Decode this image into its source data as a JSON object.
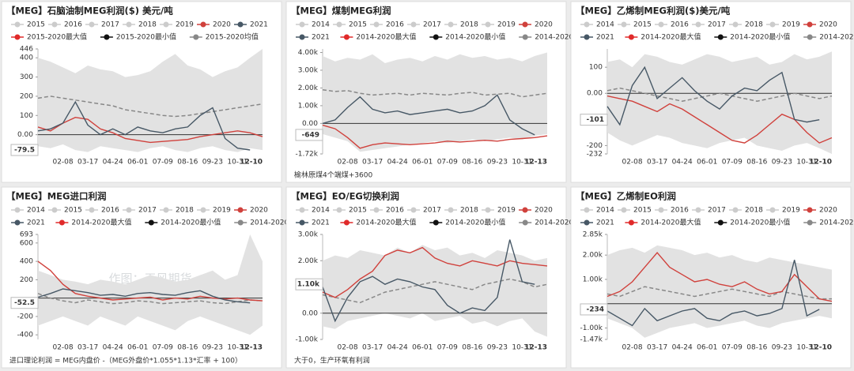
{
  "watermark": "作图：天风期货",
  "chart_data": [
    {
      "type": "line",
      "title": "【MEG】石脑油制MEG利润($) 美元/吨",
      "inactive_legend": [
        "2015",
        "2016",
        "2017",
        "2018",
        "2019"
      ],
      "inactive_color": "#cccccc",
      "categories": [
        null,
        null,
        "02-08",
        null,
        "03-17",
        null,
        "04-24",
        null,
        "06-01",
        null,
        "07-09",
        null,
        "08-16",
        null,
        "09-23",
        null,
        "10-31",
        null,
        "12-10"
      ],
      "ylim": [
        -100,
        446
      ],
      "yticks": [
        446,
        400,
        300,
        200,
        100,
        {
          "value": 0,
          "label": "0.00"
        },
        -100
      ],
      "current": -79.5,
      "zero_line": true,
      "series": [
        {
          "name": "2020",
          "color": "#d0413c",
          "values": [
            40,
            20,
            60,
            90,
            80,
            30,
            10,
            -20,
            -30,
            -40,
            -35,
            -30,
            -25,
            -10,
            0,
            10,
            20,
            10,
            -10
          ]
        },
        {
          "name": "2021",
          "color": "#475866",
          "values": [
            20,
            30,
            60,
            170,
            50,
            0,
            30,
            0,
            40,
            20,
            10,
            30,
            40,
            100,
            140,
            -20,
            -70,
            -79.5,
            null
          ]
        },
        {
          "name": "2015-2020最大值",
          "color": "#e02a2a",
          "band": "upper",
          "values": [
            400,
            380,
            350,
            320,
            360,
            340,
            330,
            300,
            310,
            330,
            380,
            420,
            360,
            340,
            300,
            330,
            350,
            400,
            446
          ]
        },
        {
          "name": "2015-2020最小值",
          "color": "#111111",
          "band": "lower",
          "values": [
            -60,
            -70,
            -50,
            -80,
            -90,
            -60,
            -70,
            -80,
            -90,
            -70,
            -60,
            -80,
            -90,
            -70,
            -60,
            -80,
            -90,
            -70,
            -80
          ]
        },
        {
          "name": "2015-2020均值",
          "color": "#888888",
          "dashed": true,
          "values": [
            190,
            200,
            190,
            180,
            170,
            160,
            150,
            130,
            120,
            110,
            100,
            95,
            100,
            110,
            120,
            130,
            140,
            150,
            160
          ]
        }
      ]
    },
    {
      "type": "line",
      "title": "【MEG】煤制MEG利润",
      "inactive_legend": [
        "2014",
        "2015",
        "2016",
        "2017",
        "2018",
        "2019"
      ],
      "inactive_color": "#cccccc",
      "categories": [
        null,
        null,
        "02-08",
        null,
        "03-17",
        null,
        "04-24",
        null,
        "06-01",
        null,
        "07-09",
        null,
        "08-16",
        null,
        "09-23",
        null,
        "10-31",
        null,
        "12-13"
      ],
      "ylim": [
        -1720,
        4200
      ],
      "yticks": [
        {
          "value": 4000,
          "label": "4.00k"
        },
        {
          "value": 3000,
          "label": "3.00k"
        },
        {
          "value": 2000,
          "label": "2.00k"
        },
        {
          "value": 1000,
          "label": "1.00k"
        },
        {
          "value": 0,
          "label": "0.00"
        },
        {
          "value": -1720,
          "label": "-1.72k"
        }
      ],
      "current": -649,
      "zero_line": true,
      "footnote": "榆林原煤4个端煤+3600",
      "series": [
        {
          "name": "2020",
          "color": "#d0413c",
          "values": [
            -100,
            -300,
            -800,
            -1400,
            -1200,
            -1100,
            -1150,
            -1200,
            -1150,
            -1100,
            -1000,
            -1050,
            -1000,
            -950,
            -1000,
            -900,
            -850,
            -800,
            -700
          ]
        },
        {
          "name": "2021",
          "color": "#475866",
          "values": [
            0,
            200,
            900,
            1500,
            800,
            600,
            700,
            500,
            600,
            700,
            800,
            600,
            700,
            1000,
            1600,
            200,
            -300,
            -649,
            null
          ]
        },
        {
          "name": "2014-2020最大值",
          "color": "#e02a2a",
          "band": "upper",
          "values": [
            3800,
            3500,
            3700,
            3600,
            3900,
            3400,
            3600,
            3700,
            3500,
            3800,
            3600,
            3900,
            3700,
            3800,
            3600,
            3700,
            3500,
            3800,
            4000
          ]
        },
        {
          "name": "2014-2020最小值",
          "color": "#111111",
          "band": "lower",
          "values": [
            -600,
            -800,
            -1000,
            -1600,
            -1500,
            -1400,
            -1300,
            -1200,
            -1100,
            -1000,
            -1100,
            -1000,
            -900,
            -1000,
            -900,
            -800,
            -900,
            -700,
            -600
          ]
        },
        {
          "name": "2014-2020均值",
          "color": "#888888",
          "dashed": true,
          "values": [
            1900,
            1800,
            1850,
            1700,
            1600,
            1650,
            1700,
            1600,
            1700,
            1650,
            1600,
            1700,
            1750,
            1600,
            1650,
            1700,
            1500,
            1600,
            1700
          ]
        }
      ]
    },
    {
      "type": "line",
      "title": "【MEG】乙烯制MEG利润($)美元/吨",
      "inactive_legend": [
        "2014",
        "2015",
        "2016",
        "2017",
        "2018",
        "2019"
      ],
      "inactive_color": "#cccccc",
      "categories": [
        null,
        null,
        "02-08",
        null,
        "03-17",
        null,
        "04-24",
        null,
        "06-01",
        null,
        "07-09",
        null,
        "08-16",
        null,
        "09-23",
        null,
        "10-31",
        null,
        "12-10"
      ],
      "ylim": [
        -232,
        170
      ],
      "yticks": [
        100,
        {
          "value": 0,
          "label": "0.00"
        },
        -100,
        -200,
        -232
      ],
      "current": -101,
      "zero_line": true,
      "series": [
        {
          "name": "2020",
          "color": "#d0413c",
          "values": [
            -10,
            -20,
            -30,
            -50,
            -70,
            -40,
            -60,
            -90,
            -120,
            -150,
            -180,
            -190,
            -160,
            -120,
            -80,
            -100,
            -150,
            -190,
            -170
          ]
        },
        {
          "name": "2021",
          "color": "#475866",
          "values": [
            -50,
            -120,
            30,
            100,
            -20,
            20,
            60,
            10,
            -30,
            -60,
            -10,
            20,
            10,
            50,
            80,
            -100,
            -110,
            -101,
            null
          ]
        },
        {
          "name": "2014-2020最大值",
          "color": "#e02a2a",
          "band": "upper",
          "values": [
            120,
            130,
            100,
            150,
            140,
            120,
            110,
            130,
            150,
            140,
            120,
            130,
            140,
            110,
            120,
            150,
            130,
            140,
            160
          ]
        },
        {
          "name": "2014-2020最小值",
          "color": "#111111",
          "band": "lower",
          "values": [
            -150,
            -180,
            -200,
            -180,
            -160,
            -170,
            -190,
            -200,
            -210,
            -190,
            -180,
            -170,
            -200,
            -210,
            -220,
            -200,
            -190,
            -210,
            -232
          ]
        },
        {
          "name": "2014-2020均值",
          "color": "#888888",
          "dashed": true,
          "values": [
            10,
            20,
            10,
            0,
            -10,
            -20,
            -30,
            -20,
            -10,
            0,
            -10,
            -20,
            -30,
            -20,
            -10,
            0,
            -10,
            -20,
            -10
          ]
        }
      ]
    },
    {
      "type": "line",
      "title": "【MEG】MEG进口利润",
      "inactive_legend": [
        "2014",
        "2015",
        "2016",
        "2017",
        "2018",
        "2019"
      ],
      "inactive_color": "#cccccc",
      "categories": [
        null,
        null,
        "02-08",
        null,
        "03-17",
        null,
        "04-24",
        null,
        "06-01",
        null,
        "07-09",
        null,
        "08-16",
        null,
        "09-23",
        null,
        "10-31",
        null,
        "12-13"
      ],
      "ylim": [
        -450,
        693
      ],
      "yticks": [
        693,
        600,
        400,
        200,
        -200,
        -400
      ],
      "current": -52.5,
      "zero_line": true,
      "footnote": "进口理论利润 = MEG内盘价 -（MEG外盘价*1.055*1.13*汇率 + 100）",
      "series": [
        {
          "name": "2020",
          "color": "#d0413c",
          "values": [
            400,
            300,
            150,
            50,
            20,
            0,
            -20,
            -10,
            0,
            10,
            -20,
            0,
            -10,
            20,
            0,
            -10,
            0,
            -20,
            -30
          ]
        },
        {
          "name": "2021",
          "color": "#475866",
          "values": [
            10,
            50,
            100,
            80,
            60,
            30,
            40,
            20,
            50,
            60,
            40,
            30,
            60,
            80,
            20,
            -20,
            -40,
            -52.5,
            null
          ]
        },
        {
          "name": "2014-2020最大值",
          "color": "#e02a2a",
          "band": "upper",
          "values": [
            300,
            250,
            200,
            180,
            150,
            200,
            180,
            150,
            200,
            250,
            220,
            180,
            200,
            250,
            300,
            200,
            250,
            693,
            400
          ]
        },
        {
          "name": "2014-2020最小值",
          "color": "#111111",
          "band": "lower",
          "values": [
            -300,
            -250,
            -200,
            -250,
            -300,
            -200,
            -250,
            -300,
            -200,
            -250,
            -300,
            -350,
            -250,
            -200,
            -250,
            -300,
            -350,
            -400,
            -300
          ]
        },
        {
          "name": "2014-2020均值",
          "color": "#888888",
          "dashed": true,
          "values": [
            50,
            0,
            -30,
            -50,
            -20,
            -40,
            -60,
            -50,
            -30,
            -40,
            -60,
            -50,
            -40,
            -30,
            -50,
            -60,
            -40,
            -20,
            -30
          ]
        }
      ]
    },
    {
      "type": "line",
      "title": "【MEG】EO/EG切换利润",
      "inactive_legend": [
        "2014",
        "2015",
        "2016",
        "2017",
        "2018",
        "2019"
      ],
      "inactive_color": "#cccccc",
      "categories": [
        null,
        null,
        "02-08",
        null,
        "03-17",
        null,
        "04-24",
        null,
        "06-01",
        null,
        "07-09",
        null,
        "08-16",
        null,
        "09-23",
        null,
        "10-31",
        null,
        "12-13"
      ],
      "ylim": [
        -1000,
        3000
      ],
      "yticks": [
        {
          "value": 3000,
          "label": "3.00k"
        },
        {
          "value": 2000,
          "label": "2.00k"
        },
        {
          "value": 0,
          "label": "0.00"
        },
        {
          "value": -1000,
          "label": "-1.00k"
        }
      ],
      "current": {
        "value": 1100,
        "label": "1.10k"
      },
      "zero_line": true,
      "footnote": "大于0，生产环氧有利润",
      "series": [
        {
          "name": "2020",
          "color": "#d0413c",
          "values": [
            800,
            600,
            900,
            1300,
            1600,
            2200,
            2400,
            2300,
            2500,
            2100,
            1900,
            1800,
            2000,
            1900,
            1800,
            2000,
            1900,
            1850,
            1800
          ]
        },
        {
          "name": "2021",
          "color": "#475866",
          "values": [
            1000,
            -300,
            600,
            1200,
            1400,
            1100,
            1300,
            1200,
            1000,
            900,
            300,
            0,
            200,
            100,
            600,
            2800,
            1200,
            1100,
            null
          ]
        },
        {
          "name": "2014-2020最大值",
          "color": "#e02a2a",
          "band": "upper",
          "values": [
            2000,
            2200,
            2100,
            2400,
            2300,
            2200,
            2500,
            2300,
            2600,
            2400,
            2500,
            2200,
            2300,
            2100,
            2400,
            2300,
            2200,
            2000,
            2100
          ]
        },
        {
          "name": "2014-2020最小值",
          "color": "#111111",
          "band": "lower",
          "values": [
            -500,
            -600,
            -300,
            -200,
            -100,
            0,
            -100,
            -200,
            0,
            -300,
            -200,
            -100,
            -400,
            -300,
            -500,
            -300,
            -200,
            -700,
            -900
          ]
        },
        {
          "name": "2014-2020均值",
          "color": "#888888",
          "dashed": true,
          "values": [
            700,
            600,
            500,
            400,
            600,
            800,
            900,
            1000,
            1100,
            1200,
            1100,
            1000,
            900,
            1100,
            1200,
            1300,
            1200,
            1000,
            1100
          ]
        }
      ]
    },
    {
      "type": "line",
      "title": "【MEG】乙烯制EO利润",
      "inactive_legend": [
        "2014",
        "2015",
        "2016",
        "2017",
        "2018",
        "2019"
      ],
      "inactive_color": "#cccccc",
      "categories": [
        null,
        null,
        "02-08",
        null,
        "03-17",
        null,
        "04-24",
        null,
        "06-01",
        null,
        "07-09",
        null,
        "08-16",
        null,
        "09-23",
        null,
        "10-31",
        null,
        "12-10"
      ],
      "ylim": [
        -1470,
        2850
      ],
      "yticks": [
        {
          "value": 2850,
          "label": "2.85k"
        },
        {
          "value": 2000,
          "label": "2.00k"
        },
        {
          "value": 1000,
          "label": "1.00k"
        },
        {
          "value": -1000,
          "label": "-1.00k"
        },
        {
          "value": -1470,
          "label": "-1.47k"
        }
      ],
      "current": -234,
      "zero_line": true,
      "series": [
        {
          "name": "2020",
          "color": "#d0413c",
          "values": [
            300,
            500,
            900,
            1500,
            2100,
            1500,
            1200,
            900,
            1000,
            800,
            700,
            900,
            600,
            400,
            500,
            1200,
            700,
            200,
            100
          ]
        },
        {
          "name": "2021",
          "color": "#475866",
          "values": [
            -300,
            -600,
            -900,
            -200,
            -700,
            -500,
            -300,
            -200,
            -600,
            -700,
            -400,
            -300,
            -500,
            -400,
            -200,
            1800,
            -500,
            -234,
            null
          ]
        },
        {
          "name": "2014-2020最大值",
          "color": "#e02a2a",
          "band": "upper",
          "values": [
            2000,
            2200,
            2300,
            2100,
            2400,
            2300,
            2200,
            2000,
            2100,
            1900,
            2000,
            1800,
            1700,
            1900,
            1800,
            1700,
            1600,
            1500,
            1400
          ]
        },
        {
          "name": "2014-2020最小值",
          "color": "#111111",
          "band": "lower",
          "values": [
            -600,
            -800,
            -1000,
            -1400,
            -1200,
            -1000,
            -900,
            -800,
            -1000,
            -900,
            -800,
            -700,
            -900,
            -1000,
            -800,
            -700,
            -600,
            -500,
            -600
          ]
        },
        {
          "name": "2014-2020均值",
          "color": "#888888",
          "dashed": true,
          "values": [
            400,
            300,
            500,
            700,
            600,
            500,
            400,
            300,
            400,
            500,
            600,
            500,
            400,
            300,
            500,
            400,
            300,
            200,
            200
          ]
        }
      ]
    }
  ]
}
